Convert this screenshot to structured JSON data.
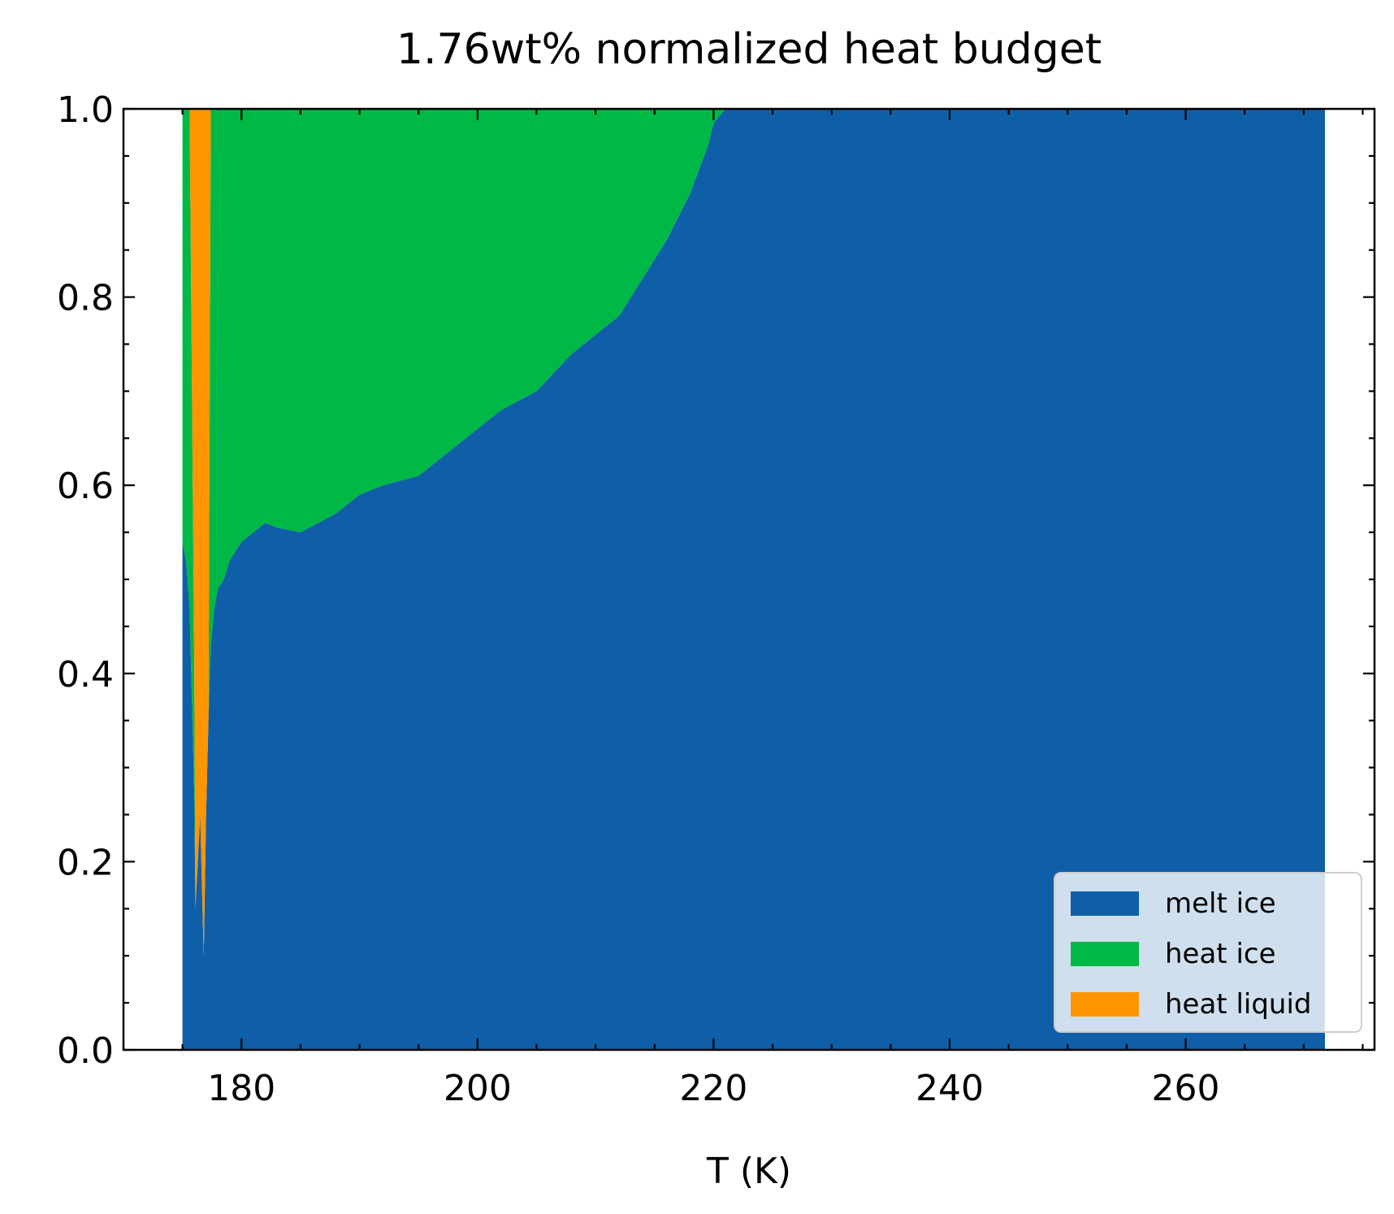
{
  "chart_data": {
    "type": "area",
    "stacked": true,
    "normalized": true,
    "title": "1.76wt% normalized heat budget",
    "xlabel": "T (K)",
    "ylabel": "",
    "xlim": [
      170,
      276
    ],
    "ylim": [
      0,
      1
    ],
    "xticks": [
      180,
      200,
      220,
      240,
      260
    ],
    "xtick_labels": [
      "180",
      "200",
      "220",
      "240",
      "260"
    ],
    "yticks": [
      0,
      0.2,
      0.4,
      0.6,
      0.8,
      1.0
    ],
    "ytick_labels": [
      "0.0",
      "0.2",
      "0.4",
      "0.6",
      "0.8",
      "1.0"
    ],
    "grid": false,
    "legend_position": "lower-right",
    "x": [
      175.0,
      175.3,
      175.6,
      176.0,
      176.1,
      176.3,
      176.5,
      176.8,
      177.0,
      177.2,
      177.4,
      177.7,
      178.0,
      178.5,
      179.0,
      180.0,
      181.0,
      182.0,
      183.0,
      185.0,
      188.0,
      190.0,
      192.0,
      195.0,
      198.0,
      200.0,
      202.0,
      205.0,
      208.0,
      210.0,
      212.0,
      214.0,
      216.0,
      218.0,
      219.5,
      220.0,
      221.0,
      225.0,
      240.0,
      260.0,
      271.8
    ],
    "series": [
      {
        "name": "melt ice",
        "color": "#0f5ea8",
        "values": [
          0.54,
          0.52,
          0.47,
          0.27,
          0.15,
          0.2,
          0.25,
          0.1,
          0.25,
          0.35,
          0.43,
          0.47,
          0.49,
          0.5,
          0.52,
          0.54,
          0.55,
          0.56,
          0.555,
          0.55,
          0.57,
          0.59,
          0.6,
          0.61,
          0.64,
          0.66,
          0.68,
          0.7,
          0.74,
          0.76,
          0.78,
          0.82,
          0.86,
          0.91,
          0.96,
          0.985,
          1.0,
          1.0,
          1.0,
          1.0,
          1.0
        ]
      },
      {
        "name": "heat ice",
        "color": "#00b845",
        "values": [
          0.46,
          0.48,
          0.53,
          0.13,
          0.0,
          0.0,
          0.0,
          0.0,
          0.0,
          0.0,
          0.57,
          0.53,
          0.51,
          0.5,
          0.48,
          0.46,
          0.45,
          0.44,
          0.445,
          0.45,
          0.43,
          0.41,
          0.4,
          0.39,
          0.36,
          0.34,
          0.32,
          0.3,
          0.26,
          0.24,
          0.22,
          0.18,
          0.14,
          0.09,
          0.04,
          0.015,
          0.0,
          0.0,
          0.0,
          0.0,
          0.0
        ]
      },
      {
        "name": "heat liquid",
        "color": "#ff9500",
        "values": [
          0.0,
          0.0,
          0.0,
          0.6,
          0.85,
          0.8,
          0.75,
          0.9,
          0.75,
          0.65,
          0.0,
          0.0,
          0.0,
          0.0,
          0.0,
          0.0,
          0.0,
          0.0,
          0.0,
          0.0,
          0.0,
          0.0,
          0.0,
          0.0,
          0.0,
          0.0,
          0.0,
          0.0,
          0.0,
          0.0,
          0.0,
          0.0,
          0.0,
          0.0,
          0.0,
          0.0,
          0.0,
          0.0,
          0.0,
          0.0,
          0.0
        ]
      }
    ]
  }
}
